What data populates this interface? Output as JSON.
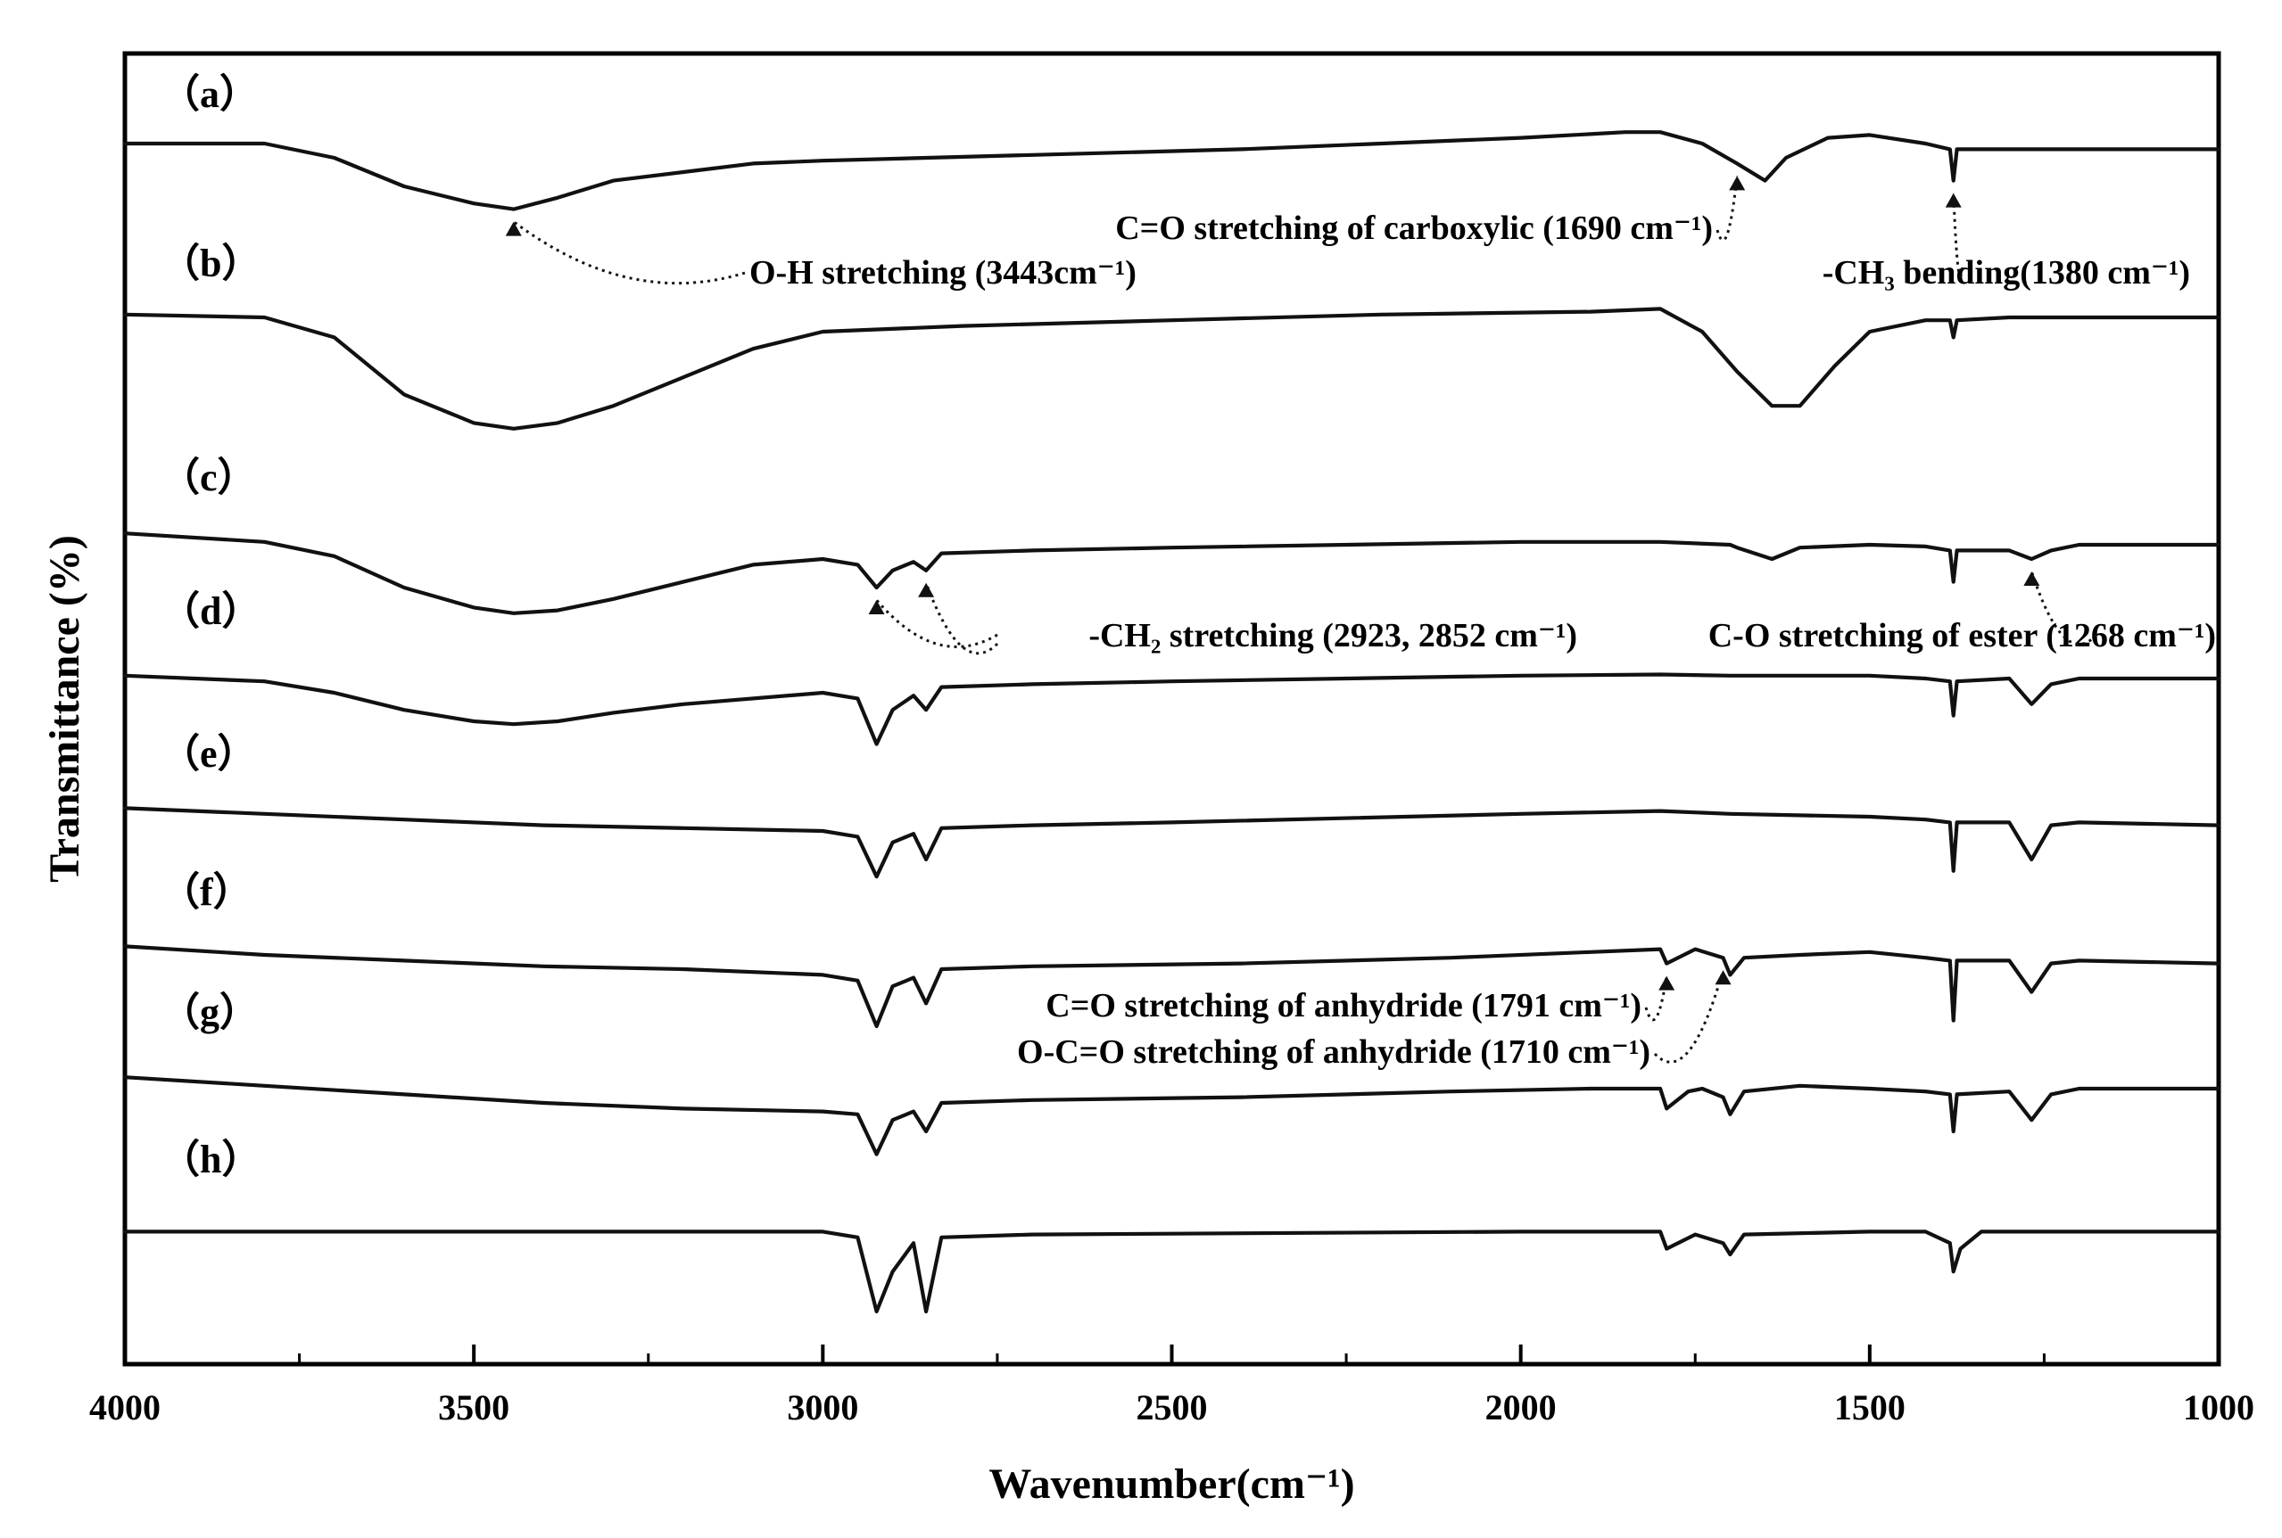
{
  "chart_data": {
    "type": "line",
    "title": "",
    "xlabel": "Wavenumber(cm⁻¹)",
    "ylabel": "Transmittance (%)",
    "xlim": [
      4000,
      1000
    ],
    "x_ticks": [
      4000,
      3500,
      3000,
      2500,
      2000,
      1500,
      1000
    ],
    "x_tick_labels": [
      "4000",
      "3500",
      "3000",
      "2500",
      "2000",
      "1500",
      "1000"
    ],
    "y_ticks_shown": false,
    "series": [
      {
        "name": "(a)",
        "label": "（a）",
        "points": [
          [
            4000,
            2.5
          ],
          [
            3800,
            2.5
          ],
          [
            3700,
            5
          ],
          [
            3600,
            10
          ],
          [
            3500,
            13
          ],
          [
            3443,
            14
          ],
          [
            3380,
            12
          ],
          [
            3300,
            9
          ],
          [
            3200,
            7.5
          ],
          [
            3100,
            6
          ],
          [
            3000,
            5.5
          ],
          [
            2700,
            4.5
          ],
          [
            2400,
            3.5
          ],
          [
            2000,
            1.5
          ],
          [
            1850,
            0.5
          ],
          [
            1800,
            0.5
          ],
          [
            1740,
            2.5
          ],
          [
            1690,
            6
          ],
          [
            1650,
            9
          ],
          [
            1620,
            5
          ],
          [
            1560,
            1.5
          ],
          [
            1500,
            1
          ],
          [
            1420,
            2.5
          ],
          [
            1385,
            3.5
          ],
          [
            1380,
            9
          ],
          [
            1375,
            3.5
          ],
          [
            1300,
            3.5
          ],
          [
            1000,
            3.5
          ]
        ]
      },
      {
        "name": "(b)",
        "label": "（b）",
        "points": [
          [
            4000,
            2
          ],
          [
            3800,
            2.5
          ],
          [
            3700,
            6
          ],
          [
            3600,
            16
          ],
          [
            3500,
            21
          ],
          [
            3443,
            22
          ],
          [
            3380,
            21
          ],
          [
            3300,
            18
          ],
          [
            3200,
            13
          ],
          [
            3100,
            8
          ],
          [
            3000,
            5
          ],
          [
            2800,
            4
          ],
          [
            2500,
            3
          ],
          [
            2200,
            2
          ],
          [
            1900,
            1.5
          ],
          [
            1800,
            1
          ],
          [
            1740,
            5
          ],
          [
            1690,
            12
          ],
          [
            1640,
            18
          ],
          [
            1600,
            18
          ],
          [
            1550,
            11
          ],
          [
            1500,
            5
          ],
          [
            1420,
            3
          ],
          [
            1385,
            3
          ],
          [
            1380,
            6
          ],
          [
            1375,
            3
          ],
          [
            1300,
            2.5
          ],
          [
            1000,
            2.5
          ]
        ]
      },
      {
        "name": "(c)",
        "label": "（c）",
        "points": [
          [
            4000,
            0.5
          ],
          [
            3800,
            2
          ],
          [
            3700,
            4.5
          ],
          [
            3600,
            10
          ],
          [
            3500,
            13.5
          ],
          [
            3443,
            14.5
          ],
          [
            3380,
            14
          ],
          [
            3300,
            12
          ],
          [
            3200,
            9
          ],
          [
            3100,
            6
          ],
          [
            3000,
            5
          ],
          [
            2950,
            6
          ],
          [
            2923,
            10
          ],
          [
            2900,
            7
          ],
          [
            2870,
            5.5
          ],
          [
            2852,
            7
          ],
          [
            2830,
            4
          ],
          [
            2700,
            3.5
          ],
          [
            2500,
            3
          ],
          [
            2000,
            2
          ],
          [
            1800,
            2
          ],
          [
            1700,
            2.5
          ],
          [
            1690,
            3
          ],
          [
            1640,
            5
          ],
          [
            1600,
            3
          ],
          [
            1500,
            2.5
          ],
          [
            1420,
            2.8
          ],
          [
            1385,
            3.5
          ],
          [
            1380,
            9
          ],
          [
            1375,
            3.5
          ],
          [
            1300,
            3.5
          ],
          [
            1268,
            5
          ],
          [
            1240,
            3.5
          ],
          [
            1200,
            2.5
          ],
          [
            1000,
            2.5
          ]
        ]
      },
      {
        "name": "(d)",
        "label": "（d）",
        "points": [
          [
            4000,
            2
          ],
          [
            3800,
            3
          ],
          [
            3700,
            5
          ],
          [
            3600,
            8
          ],
          [
            3500,
            10
          ],
          [
            3443,
            10.5
          ],
          [
            3380,
            10
          ],
          [
            3300,
            8.5
          ],
          [
            3200,
            7
          ],
          [
            3000,
            5
          ],
          [
            2950,
            6
          ],
          [
            2923,
            14
          ],
          [
            2900,
            8
          ],
          [
            2870,
            5.5
          ],
          [
            2852,
            8
          ],
          [
            2830,
            4
          ],
          [
            2700,
            3.5
          ],
          [
            2500,
            3
          ],
          [
            2000,
            2
          ],
          [
            1800,
            1.8
          ],
          [
            1700,
            2
          ],
          [
            1500,
            2
          ],
          [
            1420,
            2.5
          ],
          [
            1385,
            3
          ],
          [
            1380,
            9
          ],
          [
            1375,
            3
          ],
          [
            1300,
            2.5
          ],
          [
            1268,
            7
          ],
          [
            1240,
            3.5
          ],
          [
            1200,
            2.5
          ],
          [
            1000,
            2.5
          ]
        ]
      },
      {
        "name": "(e)",
        "label": "（e）",
        "points": [
          [
            4000,
            1
          ],
          [
            3800,
            2
          ],
          [
            3600,
            3
          ],
          [
            3400,
            4
          ],
          [
            3200,
            4.5
          ],
          [
            3000,
            5
          ],
          [
            2950,
            6
          ],
          [
            2923,
            13
          ],
          [
            2900,
            7
          ],
          [
            2870,
            5.5
          ],
          [
            2852,
            10
          ],
          [
            2830,
            4.5
          ],
          [
            2700,
            4
          ],
          [
            2500,
            3.5
          ],
          [
            2000,
            2
          ],
          [
            1800,
            1.5
          ],
          [
            1700,
            2
          ],
          [
            1500,
            2.5
          ],
          [
            1420,
            3
          ],
          [
            1385,
            3.5
          ],
          [
            1380,
            12
          ],
          [
            1375,
            3.5
          ],
          [
            1300,
            3.5
          ],
          [
            1268,
            10
          ],
          [
            1240,
            4
          ],
          [
            1200,
            3.5
          ],
          [
            1000,
            4
          ]
        ]
      },
      {
        "name": "(f)",
        "label": "（f）",
        "points": [
          [
            4000,
            1
          ],
          [
            3800,
            2.5
          ],
          [
            3600,
            3.5
          ],
          [
            3400,
            4.5
          ],
          [
            3200,
            5
          ],
          [
            3000,
            6
          ],
          [
            2950,
            7
          ],
          [
            2923,
            15
          ],
          [
            2900,
            8
          ],
          [
            2870,
            6.5
          ],
          [
            2852,
            11
          ],
          [
            2830,
            5
          ],
          [
            2700,
            4.5
          ],
          [
            2400,
            4
          ],
          [
            2100,
            3
          ],
          [
            1900,
            2
          ],
          [
            1800,
            1.5
          ],
          [
            1791,
            4
          ],
          [
            1750,
            1.5
          ],
          [
            1710,
            3
          ],
          [
            1700,
            6
          ],
          [
            1680,
            3
          ],
          [
            1600,
            2.5
          ],
          [
            1500,
            2
          ],
          [
            1420,
            3
          ],
          [
            1385,
            3.5
          ],
          [
            1380,
            14
          ],
          [
            1375,
            3.5
          ],
          [
            1300,
            3.5
          ],
          [
            1268,
            9
          ],
          [
            1240,
            4
          ],
          [
            1200,
            3.5
          ],
          [
            1000,
            4
          ]
        ]
      },
      {
        "name": "(g)",
        "label": "（g）",
        "points": [
          [
            4000,
            0.5
          ],
          [
            3800,
            2
          ],
          [
            3600,
            3.5
          ],
          [
            3400,
            5
          ],
          [
            3200,
            6
          ],
          [
            3000,
            6.5
          ],
          [
            2950,
            7
          ],
          [
            2923,
            14
          ],
          [
            2900,
            8
          ],
          [
            2870,
            6.5
          ],
          [
            2852,
            10
          ],
          [
            2830,
            5
          ],
          [
            2700,
            4.5
          ],
          [
            2400,
            4
          ],
          [
            2100,
            3
          ],
          [
            1900,
            2.5
          ],
          [
            1800,
            2.5
          ],
          [
            1791,
            6
          ],
          [
            1760,
            3
          ],
          [
            1740,
            2.5
          ],
          [
            1710,
            4
          ],
          [
            1700,
            7
          ],
          [
            1680,
            3
          ],
          [
            1600,
            2
          ],
          [
            1500,
            2.5
          ],
          [
            1420,
            3
          ],
          [
            1385,
            3.5
          ],
          [
            1380,
            10
          ],
          [
            1375,
            3.5
          ],
          [
            1300,
            3
          ],
          [
            1268,
            8
          ],
          [
            1240,
            3.5
          ],
          [
            1200,
            2.5
          ],
          [
            1000,
            2.5
          ]
        ]
      },
      {
        "name": "(h)",
        "label": "（h）",
        "points": [
          [
            4000,
            1
          ],
          [
            3800,
            1
          ],
          [
            3200,
            1
          ],
          [
            3000,
            1
          ],
          [
            2950,
            2
          ],
          [
            2923,
            15
          ],
          [
            2900,
            8
          ],
          [
            2870,
            3
          ],
          [
            2852,
            15
          ],
          [
            2830,
            2
          ],
          [
            2700,
            1.5
          ],
          [
            2000,
            1
          ],
          [
            1800,
            1
          ],
          [
            1791,
            4
          ],
          [
            1750,
            1.5
          ],
          [
            1710,
            3
          ],
          [
            1700,
            5
          ],
          [
            1680,
            1.5
          ],
          [
            1500,
            1
          ],
          [
            1420,
            1
          ],
          [
            1385,
            3
          ],
          [
            1380,
            8
          ],
          [
            1370,
            4
          ],
          [
            1340,
            1
          ],
          [
            1000,
            1
          ]
        ]
      }
    ],
    "annotations": [
      {
        "text": "C=O stretching of carboxylic (1690 cm⁻¹)",
        "series": "(a)",
        "x": 1690
      },
      {
        "text": "O-H stretching (3443cm⁻¹)",
        "series": "(a)",
        "x": 3443
      },
      {
        "text": "-CH₃ bending(1380 cm⁻¹)",
        "series": "(a)",
        "x": 1380
      },
      {
        "text": "-CH₂ stretching (2923, 2852 cm⁻¹)",
        "series": "(c)",
        "x": [
          2923,
          2852
        ]
      },
      {
        "text": "C-O  stretching of ester (1268 cm⁻¹)",
        "series": "(c)",
        "x": 1268
      },
      {
        "text": "C=O stretching of anhydride (1791 cm⁻¹)",
        "series": "(f)",
        "x": 1791
      },
      {
        "text": "O-C=O stretching of anhydride (1710 cm⁻¹)",
        "series": "(f)",
        "x": 1710
      }
    ]
  }
}
